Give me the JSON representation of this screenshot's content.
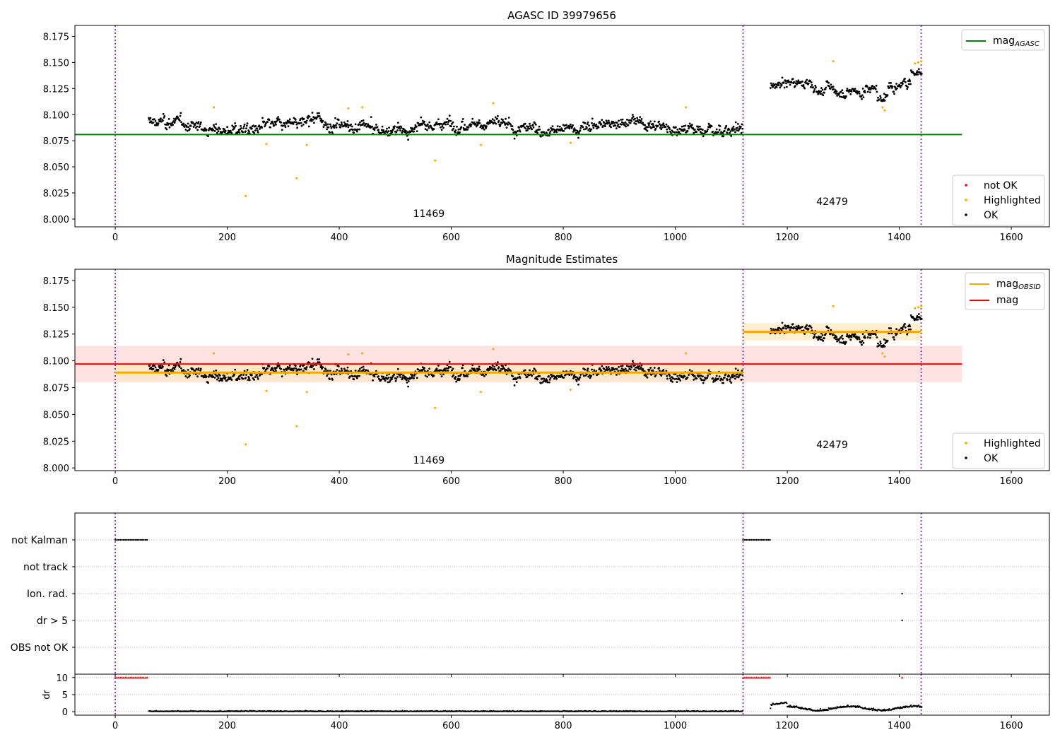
{
  "chart_data": [
    {
      "type": "scatter",
      "title": "AGASC ID 39979656",
      "xlim": [
        -72,
        1668
      ],
      "ylim": [
        7.9925,
        8.1855
      ],
      "xticks": [
        "0",
        "200",
        "400",
        "600",
        "800",
        "1000",
        "1200",
        "1400",
        "1600"
      ],
      "yticks": [
        "8.000",
        "8.025",
        "8.050",
        "8.075",
        "8.100",
        "8.125",
        "8.150",
        "8.175"
      ],
      "obsid_boundaries": [
        0,
        1121,
        1439
      ],
      "obsid_labels": [
        {
          "text": "11469",
          "x": 560,
          "y": 8.002
        },
        {
          "text": "42479",
          "x": 1280,
          "y": 8.0135
        }
      ],
      "mag_agasc": {
        "value": 8.081,
        "x_range": [
          -72,
          1512
        ],
        "color": "#008000"
      },
      "segments": [
        {
          "x_start": 60,
          "x_end": 1120,
          "mean": 8.089
        },
        {
          "x_start": 1170,
          "x_end": 1440,
          "mean": 8.127
        }
      ],
      "highlighted": [
        [
          176,
          8.107
        ],
        [
          233,
          8.022
        ],
        [
          270,
          8.072
        ],
        [
          324,
          8.039
        ],
        [
          342,
          8.071
        ],
        [
          416,
          8.106
        ],
        [
          441,
          8.107
        ],
        [
          571,
          8.056
        ],
        [
          653,
          8.071
        ],
        [
          675,
          8.111
        ],
        [
          813,
          8.073
        ],
        [
          1019,
          8.107
        ],
        [
          1282,
          8.151
        ],
        [
          1370,
          8.107
        ],
        [
          1374,
          8.104
        ],
        [
          1428,
          8.149
        ],
        [
          1434,
          8.15
        ],
        [
          1439,
          8.151
        ]
      ],
      "legend": {
        "upper": [
          {
            "label": "mag",
            "subscript": "AGASC",
            "color": "#008000",
            "kind": "line"
          }
        ],
        "lower": [
          {
            "label": "not OK",
            "color": "#ff0000",
            "kind": "dot"
          },
          {
            "label": "Highlighted",
            "color": "#ffa500",
            "kind": "dot"
          },
          {
            "label": "OK",
            "color": "#000000",
            "kind": "dot"
          }
        ]
      }
    },
    {
      "type": "scatter",
      "title": "Magnitude Estimates",
      "xlim": [
        -72,
        1668
      ],
      "ylim": [
        7.9975,
        8.1855
      ],
      "xticks": [
        "0",
        "200",
        "400",
        "600",
        "800",
        "1000",
        "1200",
        "1400",
        "1600"
      ],
      "yticks": [
        "8.000",
        "8.025",
        "8.050",
        "8.075",
        "8.100",
        "8.125",
        "8.150",
        "8.175"
      ],
      "obsid_labels": [
        {
          "text": "11469",
          "x": 560,
          "y": 8.004
        },
        {
          "text": "42479",
          "x": 1280,
          "y": 8.0185
        }
      ],
      "mag": {
        "value": 8.097,
        "band": [
          8.08,
          8.114
        ],
        "x_range": [
          -72,
          1512
        ],
        "color": "#ff0000",
        "band_color": "#ffe3e3"
      },
      "mag_obsid": [
        {
          "x_range": [
            0,
            1121
          ],
          "value": 8.089,
          "band": [
            8.081,
            8.097
          ]
        },
        {
          "x_range": [
            1121,
            1439
          ],
          "value": 8.127,
          "band": [
            8.119,
            8.135
          ]
        }
      ],
      "mag_obsid_color": "#ffa500",
      "legend": {
        "upper": [
          {
            "label": "mag",
            "subscript": "OBSID",
            "color": "#ffa500",
            "kind": "line"
          },
          {
            "label": "mag",
            "subscript": "",
            "color": "#ff0000",
            "kind": "line"
          }
        ],
        "lower": [
          {
            "label": "Highlighted",
            "color": "#ffa500",
            "kind": "dot"
          },
          {
            "label": "OK",
            "color": "#000000",
            "kind": "dot"
          }
        ]
      }
    },
    {
      "type": "scatter",
      "title": "",
      "xticks": [
        "0",
        "200",
        "400",
        "600",
        "800",
        "1000",
        "1200",
        "1400",
        "1600"
      ],
      "flag_labels": [
        "not Kalman",
        "not track",
        "Ion. rad.",
        "dr > 5",
        "OBS not OK"
      ],
      "flags": {
        "not Kalman": [
          [
            0,
            58
          ],
          [
            1121,
            1169
          ]
        ],
        "not track": [],
        "Ion. rad.": [
          [
            1405,
            1405
          ]
        ],
        "dr > 5": [
          [
            1405,
            1405
          ]
        ],
        "OBS not OK": []
      },
      "dr": {
        "ylabel": "dr",
        "ylim": [
          -1,
          11
        ],
        "yticks": [
          "0",
          "5",
          "10"
        ],
        "clipped_at_10": [
          [
            0,
            58
          ],
          [
            1121,
            1169
          ],
          [
            1405,
            1405
          ]
        ]
      }
    }
  ]
}
